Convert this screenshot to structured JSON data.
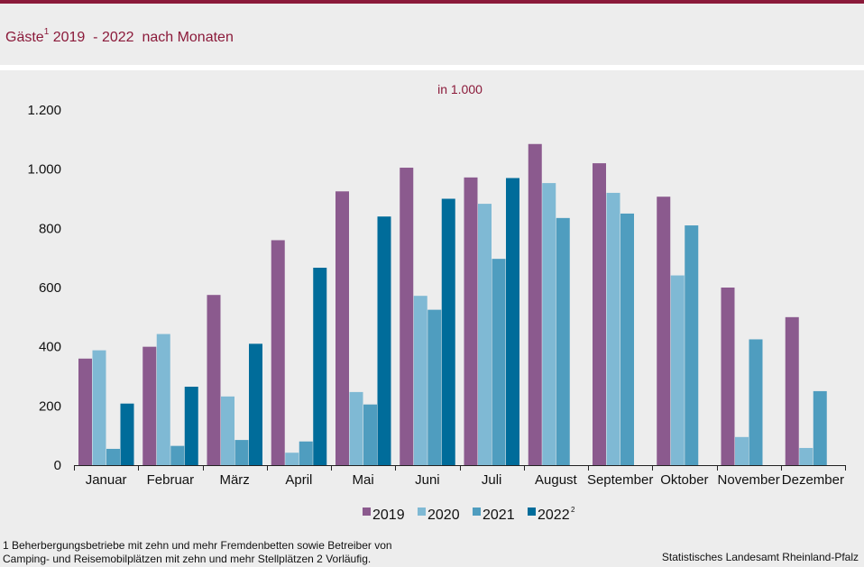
{
  "header": {
    "title_main": "Gäste",
    "title_sup": "1",
    "title_rest": " 2019  - 2022  nach Monaten"
  },
  "colors": {
    "brand": "#8b1a3a",
    "background": "#ededed",
    "series": [
      "#8b5a8e",
      "#7fb9d4",
      "#4f9dbf",
      "#006c9a"
    ]
  },
  "chart_data": {
    "type": "bar",
    "title": "Gäste 2019 - 2022 nach Monaten",
    "unit_label": "in 1.000",
    "xlabel": "",
    "ylabel": "",
    "ylim": [
      0,
      1200
    ],
    "yticks": [
      0,
      200,
      400,
      600,
      800,
      1000,
      1200
    ],
    "ytick_labels": [
      "0",
      "200",
      "400",
      "600",
      "800",
      "1.000",
      "1.200"
    ],
    "grid": false,
    "legend_position": "bottom-center",
    "categories": [
      "Januar",
      "Februar",
      "März",
      "April",
      "Mai",
      "Juni",
      "Juli",
      "August",
      "September",
      "Oktober",
      "November",
      "Dezember"
    ],
    "series": [
      {
        "name": "2019",
        "sup": "",
        "values": [
          360,
          400,
          575,
          760,
          925,
          1005,
          972,
          1085,
          1020,
          907,
          600,
          500
        ]
      },
      {
        "name": "2020",
        "sup": "",
        "values": [
          388,
          443,
          232,
          42,
          247,
          572,
          883,
          953,
          920,
          641,
          95,
          58
        ]
      },
      {
        "name": "2021",
        "sup": "",
        "values": [
          55,
          65,
          85,
          80,
          205,
          525,
          697,
          835,
          850,
          810,
          425,
          250
        ]
      },
      {
        "name": "2022",
        "sup": "2",
        "values": [
          208,
          265,
          410,
          667,
          840,
          900,
          970,
          null,
          null,
          null,
          null,
          null
        ]
      }
    ]
  },
  "footer": {
    "footnote_line1": "1 Beherbergungsbetriebe  mit zehn und mehr Fremdenbetten  sowie Betreiber von",
    "footnote_line2": "Camping- und Reisemobilplätzen  mit zehn und mehr Stellplätzen 2 Vorläufig.",
    "source": "Statistisches Landesamt Rheinland-Pfalz"
  }
}
